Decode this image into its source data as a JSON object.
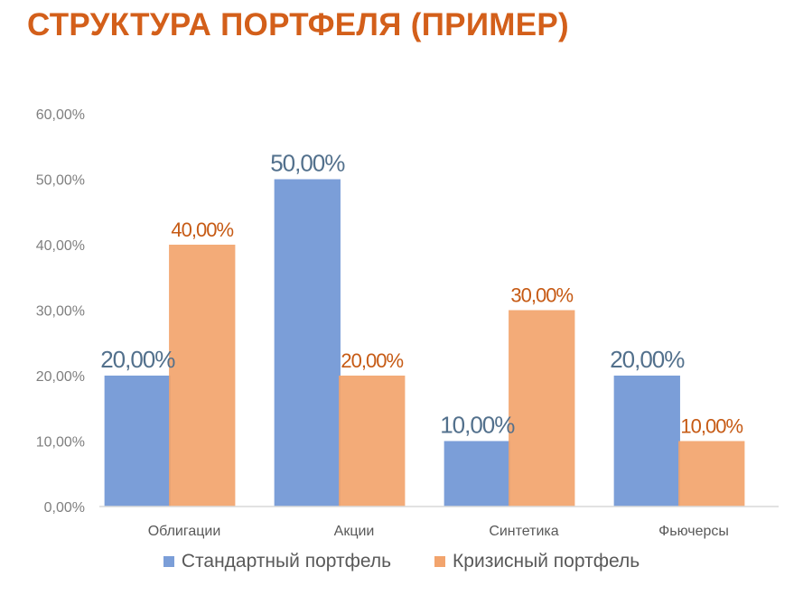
{
  "title": "СТРУКТУРА ПОРТФЕЛЯ (ПРИМЕР)",
  "chart_data": {
    "type": "bar",
    "title": "СТРУКТУРА ПОРТФЕЛЯ (ПРИМЕР)",
    "categories": [
      "Облигации",
      "Акции",
      "Синтетика",
      "Фьючерсы"
    ],
    "series": [
      {
        "name": "Стандартный портфель",
        "values": [
          20,
          50,
          10,
          20
        ],
        "labels": [
          "20,00%",
          "50,00%",
          "10,00%",
          "20,00%"
        ],
        "color": "#7b9ed8",
        "label_color": "#52708c"
      },
      {
        "name": "Кризисный портфель",
        "values": [
          40,
          20,
          30,
          10
        ],
        "labels": [
          "40,00%",
          "20,00%",
          "30,00%",
          "10,00%"
        ],
        "color": "#f2a46d",
        "label_color": "#c65a14"
      }
    ],
    "ylim": [
      0,
      60
    ],
    "yticks": [
      "0,00%",
      "10,00%",
      "20,00%",
      "30,00%",
      "40,00%",
      "50,00%",
      "60,00%"
    ],
    "ytick_values": [
      0,
      10,
      20,
      30,
      40,
      50,
      60
    ],
    "grid": false,
    "legend_position": "bottom"
  }
}
